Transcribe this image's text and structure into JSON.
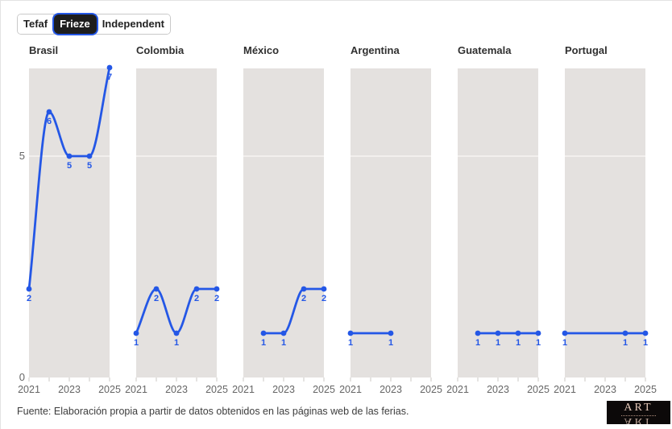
{
  "tabs": {
    "items": [
      {
        "label": "Tefaf",
        "selected": false
      },
      {
        "label": "Frieze",
        "selected": true
      },
      {
        "label": "Independent",
        "selected": false
      }
    ]
  },
  "colors": {
    "accent_blue": "#2457e6",
    "plot_bg": "#e4e1df",
    "gridline": "#f6f4f2",
    "tick": "#cbc8c6",
    "axis_text": "#666666",
    "selected_tab_bg": "#1e1e1e"
  },
  "footer": {
    "source": "Fuente: Elaboración propia a partir de datos obtenidos en las páginas web de las ferias.",
    "logo_text": "ART"
  },
  "chart_data": {
    "type": "line",
    "x": [
      2021,
      2022,
      2023,
      2024,
      2025
    ],
    "x_tick_labels": [
      "2021",
      "2023",
      "2025"
    ],
    "x_tick_values": [
      2021,
      2023,
      2025
    ],
    "ylim": [
      0,
      7.1
    ],
    "y_gridlines": [
      5
    ],
    "y_axis_labels": [
      {
        "value": 5,
        "label": "5"
      },
      {
        "value": 0,
        "label": "0"
      }
    ],
    "line_color": "#2457e6",
    "grid_on": true,
    "legend": "none",
    "series": [
      {
        "name": "Brasil",
        "points": [
          {
            "year": 2021,
            "value": 2
          },
          {
            "year": 2022,
            "value": 6
          },
          {
            "year": 2023,
            "value": 5
          },
          {
            "year": 2024,
            "value": 5
          },
          {
            "year": 2025,
            "value": 7
          }
        ]
      },
      {
        "name": "Colombia",
        "points": [
          {
            "year": 2021,
            "value": 1
          },
          {
            "year": 2022,
            "value": 2
          },
          {
            "year": 2023,
            "value": 1
          },
          {
            "year": 2024,
            "value": 2
          },
          {
            "year": 2025,
            "value": 2
          }
        ]
      },
      {
        "name": "México",
        "points": [
          {
            "year": 2022,
            "value": 1
          },
          {
            "year": 2023,
            "value": 1
          },
          {
            "year": 2024,
            "value": 2
          },
          {
            "year": 2025,
            "value": 2
          }
        ]
      },
      {
        "name": "Argentina",
        "points": [
          {
            "year": 2021,
            "value": 1
          },
          {
            "year": 2023,
            "value": 1
          }
        ]
      },
      {
        "name": "Guatemala",
        "points": [
          {
            "year": 2022,
            "value": 1
          },
          {
            "year": 2023,
            "value": 1
          },
          {
            "year": 2024,
            "value": 1
          },
          {
            "year": 2025,
            "value": 1
          }
        ]
      },
      {
        "name": "Portugal",
        "points": [
          {
            "year": 2021,
            "value": 1
          },
          {
            "year": 2024,
            "value": 1
          },
          {
            "year": 2025,
            "value": 1
          }
        ]
      }
    ]
  }
}
